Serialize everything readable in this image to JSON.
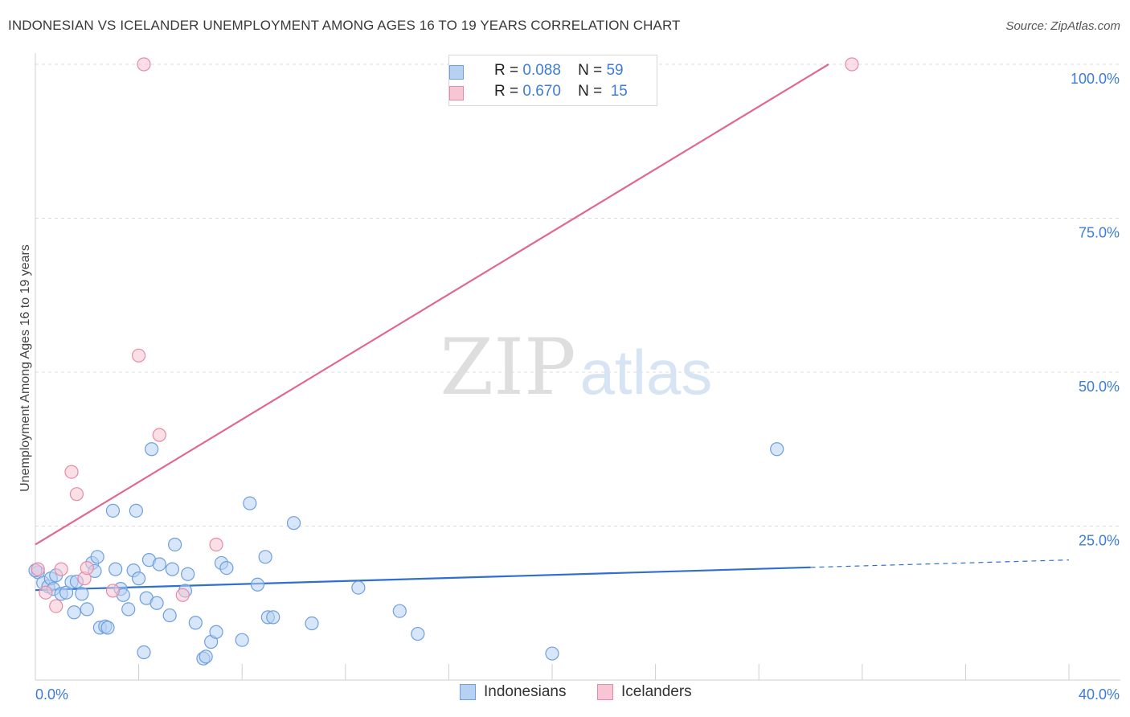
{
  "title": "INDONESIAN VS ICELANDER UNEMPLOYMENT AMONG AGES 16 TO 19 YEARS CORRELATION CHART",
  "source": "Source: ZipAtlas.com",
  "watermark": {
    "zip": "ZIP",
    "atlas": "atlas"
  },
  "legend_top": [
    {
      "r_label": "R =",
      "r_value": "0.088",
      "n_label": "N =",
      "n_value": "59"
    },
    {
      "r_label": "R =",
      "r_value": "0.670",
      "n_label": "N =",
      "n_value": "15"
    }
  ],
  "legend_bottom": [
    "Indonesians",
    "Icelanders"
  ],
  "colors": {
    "blue_fill": "#b7d1f3",
    "blue_stroke": "#6f9fde",
    "blue_line": "#2f6fcf",
    "pink_fill": "#f7c5d4",
    "pink_stroke": "#e88aa7",
    "pink_line": "#e0678f",
    "axis_text": "#3d7dd8",
    "grid": "#dcdcdc"
  },
  "chart_data": {
    "type": "scatter",
    "title": "INDONESIAN VS ICELANDER UNEMPLOYMENT AMONG AGES 16 TO 19 YEARS CORRELATION CHART",
    "xlabel": "",
    "ylabel": "Unemployment Among Ages 16 to 19 years",
    "xlim": [
      0,
      40
    ],
    "ylim": [
      0,
      100
    ],
    "x_tick_labels": [
      "0.0%",
      "40.0%"
    ],
    "y_ticks": [
      25,
      50,
      75,
      100
    ],
    "y_tick_labels": [
      "25.0%",
      "50.0%",
      "75.0%",
      "100.0%"
    ],
    "series": [
      {
        "name": "Indonesians",
        "R": 0.088,
        "N": 59,
        "trend": {
          "x0": 0,
          "y0": 14.6,
          "x1": 30,
          "y1": 18.3,
          "dashed_to_x": 40,
          "dashed_to_y": 19.5
        },
        "points": [
          [
            0.1,
            17.5
          ],
          [
            0.3,
            15.8
          ],
          [
            0.5,
            15.2
          ],
          [
            0.6,
            16.5
          ],
          [
            0.7,
            14.8
          ],
          [
            0.8,
            17.0
          ],
          [
            1.0,
            14.0
          ],
          [
            1.2,
            14.2
          ],
          [
            1.4,
            15.9
          ],
          [
            1.5,
            11.0
          ],
          [
            1.6,
            16.0
          ],
          [
            1.8,
            14.0
          ],
          [
            2.0,
            11.5
          ],
          [
            2.2,
            19.0
          ],
          [
            2.3,
            17.7
          ],
          [
            2.4,
            20.0
          ],
          [
            2.5,
            8.5
          ],
          [
            2.7,
            8.7
          ],
          [
            2.8,
            8.5
          ],
          [
            3.0,
            27.5
          ],
          [
            3.1,
            18.0
          ],
          [
            3.3,
            14.8
          ],
          [
            3.4,
            13.8
          ],
          [
            3.6,
            11.5
          ],
          [
            3.8,
            17.8
          ],
          [
            3.9,
            27.5
          ],
          [
            4.0,
            16.5
          ],
          [
            4.2,
            4.5
          ],
          [
            4.3,
            13.3
          ],
          [
            4.4,
            19.5
          ],
          [
            4.5,
            37.5
          ],
          [
            4.7,
            12.5
          ],
          [
            4.8,
            18.8
          ],
          [
            5.2,
            10.5
          ],
          [
            5.3,
            18.0
          ],
          [
            5.4,
            22.0
          ],
          [
            5.8,
            14.5
          ],
          [
            5.9,
            17.2
          ],
          [
            6.2,
            9.3
          ],
          [
            6.5,
            3.5
          ],
          [
            6.6,
            3.8
          ],
          [
            6.8,
            6.2
          ],
          [
            7.0,
            7.8
          ],
          [
            7.2,
            19.0
          ],
          [
            7.4,
            18.2
          ],
          [
            8.0,
            6.5
          ],
          [
            8.3,
            28.7
          ],
          [
            8.6,
            15.5
          ],
          [
            8.9,
            20.0
          ],
          [
            9.0,
            10.2
          ],
          [
            9.2,
            10.2
          ],
          [
            10.0,
            25.5
          ],
          [
            10.7,
            9.2
          ],
          [
            12.5,
            15.0
          ],
          [
            14.1,
            11.2
          ],
          [
            14.8,
            7.5
          ],
          [
            20.0,
            4.3
          ],
          [
            28.7,
            37.5
          ],
          [
            0.0,
            17.8
          ]
        ]
      },
      {
        "name": "Icelanders",
        "R": 0.67,
        "N": 15,
        "trend": {
          "x0": 0,
          "y0": 22.0,
          "x1": 30.7,
          "y1": 100.0
        },
        "points": [
          [
            0.1,
            18.0
          ],
          [
            0.4,
            14.2
          ],
          [
            0.8,
            12.0
          ],
          [
            1.0,
            18.0
          ],
          [
            1.4,
            33.8
          ],
          [
            1.6,
            30.2
          ],
          [
            1.9,
            16.5
          ],
          [
            2.0,
            18.2
          ],
          [
            3.0,
            14.5
          ],
          [
            4.0,
            52.7
          ],
          [
            4.2,
            100.0
          ],
          [
            4.8,
            39.8
          ],
          [
            5.7,
            13.8
          ],
          [
            7.0,
            22.0
          ],
          [
            31.6,
            100.0
          ]
        ]
      }
    ]
  }
}
